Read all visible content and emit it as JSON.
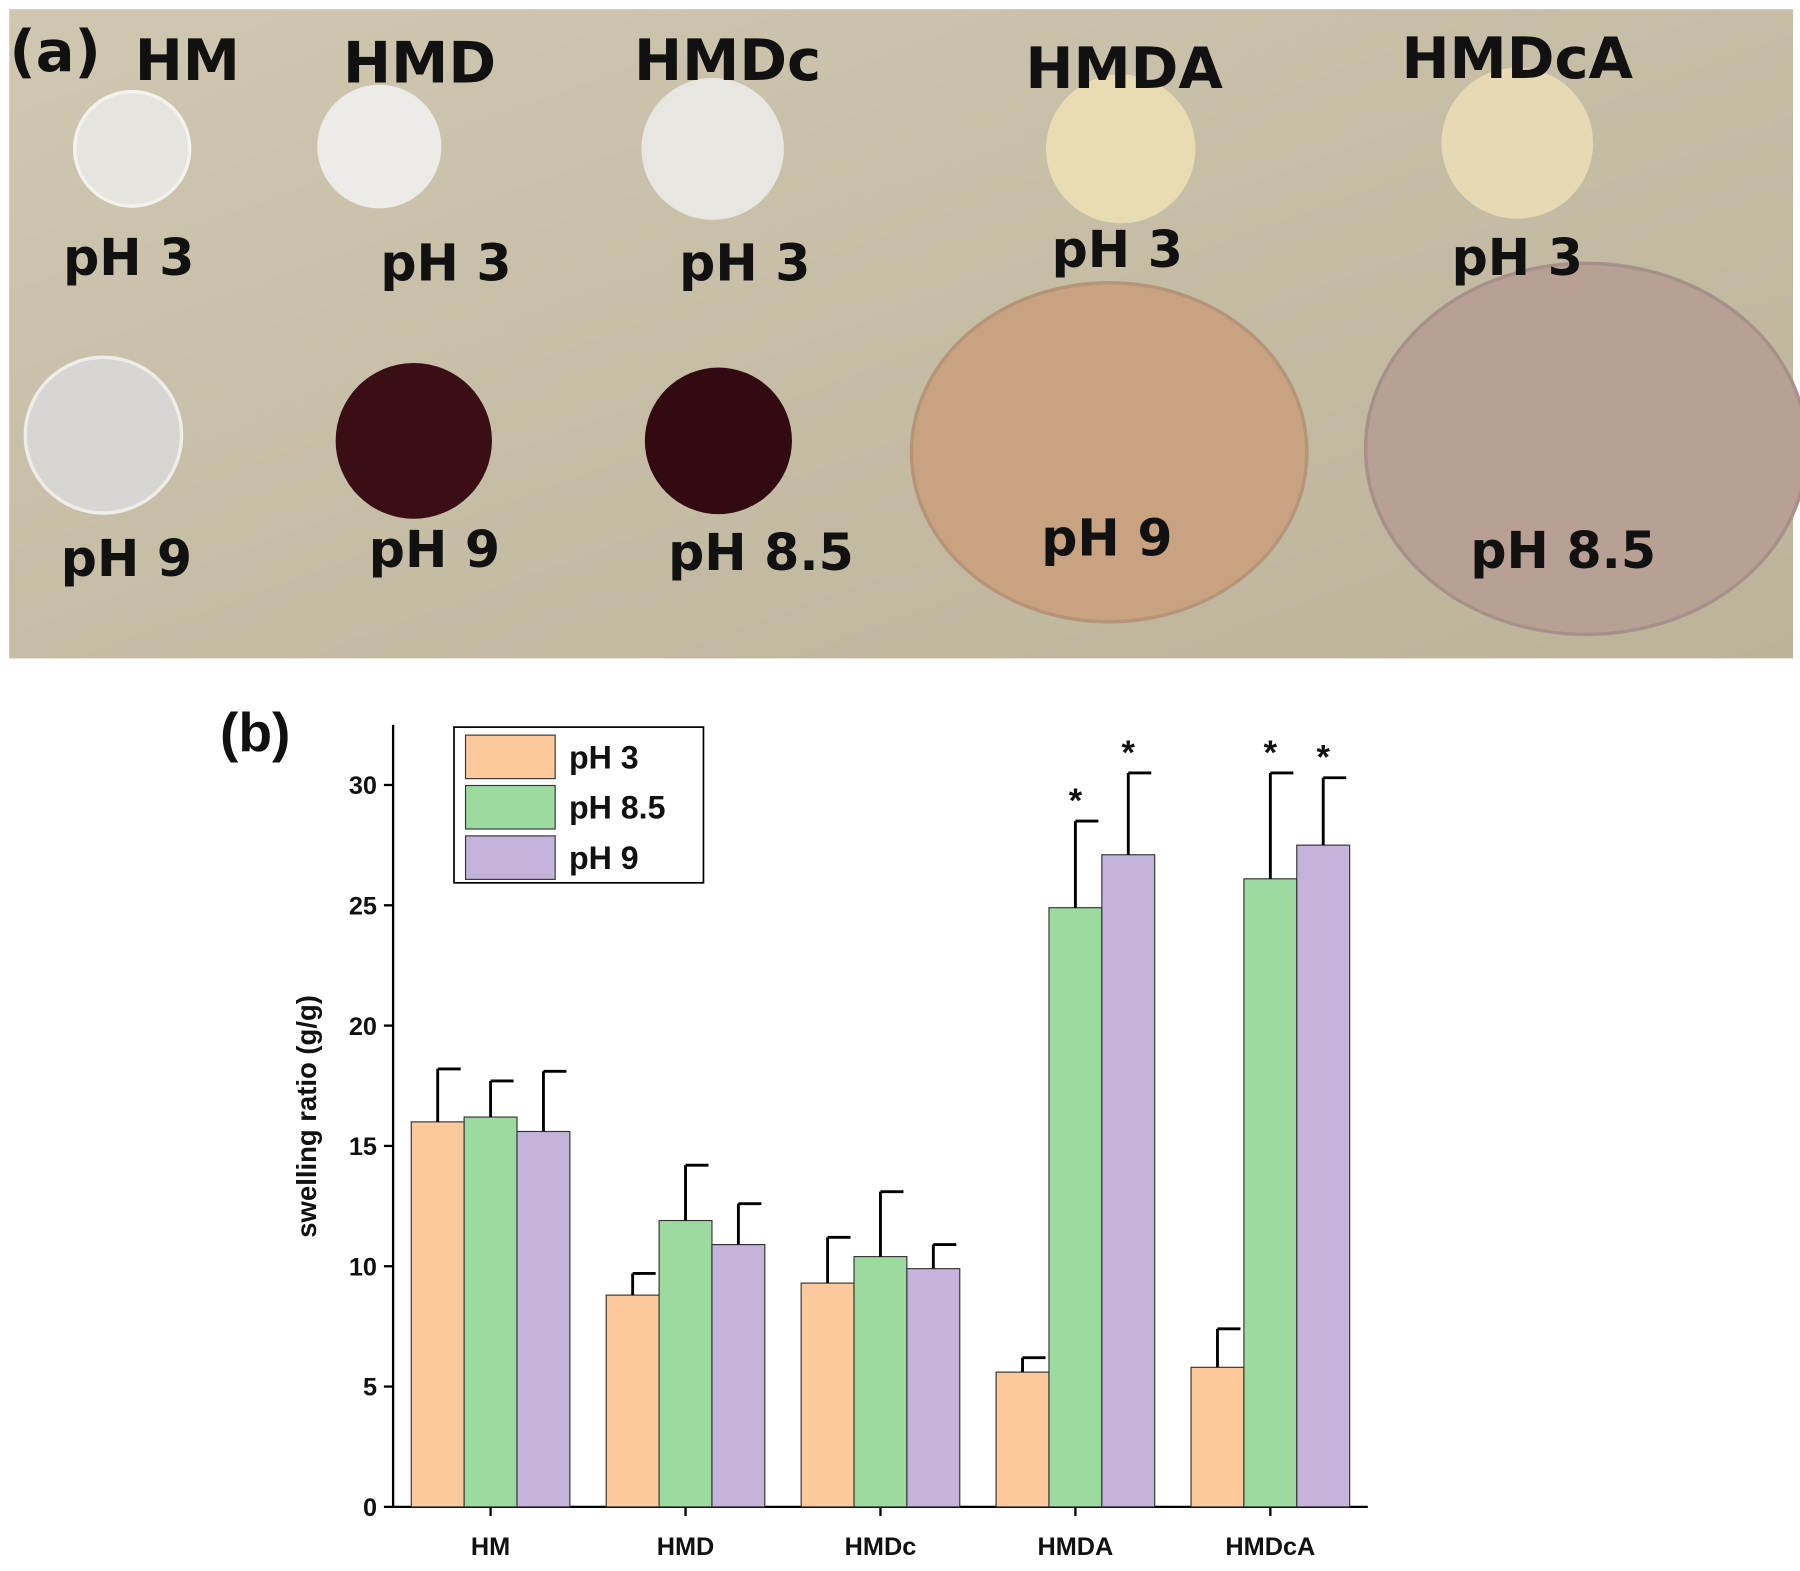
{
  "photo": {
    "panel_label": "(a)",
    "sample_labels": [
      "HM",
      "HMD",
      "HMDc",
      "HMDA",
      "HMDcA"
    ],
    "top_row_labels": [
      "pH 3",
      "pH 3",
      "pH 3",
      "pH 3",
      "pH 3"
    ],
    "bottom_row_labels": [
      "pH 9",
      "pH 9",
      "pH 8.5",
      "pH 9",
      "pH 8.5"
    ]
  },
  "chart_data": {
    "type": "bar",
    "panel_label": "(b)",
    "y_label": "swelling ratio (g/g)",
    "categories": [
      "HM",
      "HMD",
      "HMDc",
      "HMDA",
      "HMDcA"
    ],
    "series": [
      {
        "name": "pH 3",
        "color": "#fbc99c",
        "values": [
          16.0,
          8.8,
          9.3,
          5.6,
          5.8
        ],
        "errors": [
          2.2,
          0.9,
          1.9,
          0.6,
          1.6
        ],
        "markers": [
          null,
          null,
          null,
          null,
          null
        ]
      },
      {
        "name": "pH 8.5",
        "color": "#9dda9f",
        "values": [
          16.2,
          11.9,
          10.4,
          24.9,
          26.1
        ],
        "errors": [
          1.5,
          2.3,
          2.7,
          3.6,
          4.4
        ],
        "markers": [
          null,
          null,
          null,
          "*",
          "*"
        ]
      },
      {
        "name": "pH 9",
        "color": "#c4b3da",
        "values": [
          15.6,
          10.9,
          9.9,
          27.1,
          27.5
        ],
        "errors": [
          2.5,
          1.7,
          1.0,
          3.4,
          2.8
        ],
        "markers": [
          null,
          null,
          null,
          "*",
          "*"
        ]
      }
    ],
    "ylim": [
      0,
      32.5
    ],
    "yticks": [
      0,
      5,
      10,
      15,
      20,
      25,
      30
    ],
    "legend": "upper left"
  }
}
